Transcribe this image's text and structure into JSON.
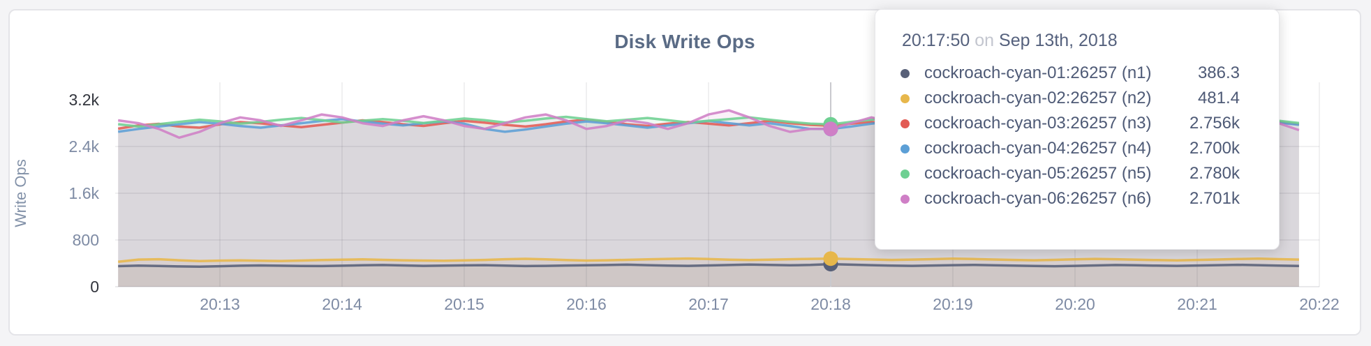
{
  "header": {
    "title": "Disk Write Ops"
  },
  "tooltip": {
    "time": "20:17:50",
    "conjunction": "on",
    "date": "Sep 13th, 2018",
    "rows": [
      {
        "label": "cockroach-cyan-01:26257 (n1)",
        "value": "386.3"
      },
      {
        "label": "cockroach-cyan-02:26257 (n2)",
        "value": "481.4"
      },
      {
        "label": "cockroach-cyan-03:26257 (n3)",
        "value": "2.756k"
      },
      {
        "label": "cockroach-cyan-04:26257 (n4)",
        "value": "2.700k"
      },
      {
        "label": "cockroach-cyan-05:26257 (n5)",
        "value": "2.780k"
      },
      {
        "label": "cockroach-cyan-06:26257 (n6)",
        "value": "2.701k"
      }
    ]
  },
  "chart_data": {
    "type": "area",
    "title": "Disk Write Ops",
    "xlabel": "",
    "ylabel": "Write Ops",
    "ylim": [
      0,
      3200
    ],
    "grid": true,
    "legend_position": "tooltip",
    "y_ticks": [
      {
        "label": "0",
        "value": 0,
        "emphasis": true
      },
      {
        "label": "800",
        "value": 800,
        "emphasis": false
      },
      {
        "label": "1.6k",
        "value": 1600,
        "emphasis": false
      },
      {
        "label": "2.4k",
        "value": 2400,
        "emphasis": false
      },
      {
        "label": "3.2k",
        "value": 3200,
        "emphasis": true
      }
    ],
    "x_ticks": [
      "20:13",
      "20:14",
      "20:15",
      "20:16",
      "20:17",
      "20:18",
      "20:19",
      "20:20",
      "20:21",
      "20:22"
    ],
    "x_start": "20:12:10",
    "x_interval_seconds": 10,
    "hover": {
      "time_label": "20:17:50",
      "index": 35
    },
    "colors": {
      "axis_text": "#7e8ba4",
      "axis_text_emphasis": "#32353d",
      "grid_line": "rgba(40,42,54,0.07)",
      "baseline": "rgba(40,42,54,0.10)",
      "hover_guideline": "#c9c9ce"
    },
    "series": [
      {
        "name": "cockroach-cyan-01:26257 (n1)",
        "color": "#586078",
        "values": [
          352,
          361,
          355,
          348,
          344,
          351,
          359,
          364,
          360,
          356,
          353,
          359,
          367,
          371,
          364,
          357,
          361,
          365,
          369,
          361,
          354,
          357,
          363,
          367,
          371,
          377,
          369,
          361,
          357,
          364,
          371,
          379,
          374,
          367,
          372,
          386.3,
          377,
          369,
          361,
          357,
          363,
          369,
          374,
          367,
          361,
          356,
          351,
          357,
          364,
          371,
          367,
          361,
          357,
          363,
          369,
          375,
          369,
          361,
          355
        ]
      },
      {
        "name": "cockroach-cyan-02:26257 (n2)",
        "color": "#e7b74b",
        "values": [
          428,
          465,
          470,
          452,
          438,
          446,
          450,
          444,
          440,
          448,
          456,
          463,
          468,
          460,
          453,
          448,
          444,
          450,
          458,
          470,
          478,
          468,
          456,
          448,
          453,
          460,
          468,
          476,
          482,
          474,
          463,
          456,
          462,
          470,
          476,
          481.4,
          473,
          466,
          458,
          464,
          472,
          480,
          474,
          466,
          458,
          453,
          460,
          468,
          476,
          470,
          462,
          456,
          450,
          458,
          466,
          474,
          480,
          472,
          464
        ]
      },
      {
        "name": "cockroach-cyan-03:26257 (n3)",
        "color": "#e25b54",
        "values": [
          2705,
          2762,
          2788,
          2741,
          2722,
          2779,
          2818,
          2798,
          2761,
          2732,
          2770,
          2809,
          2848,
          2819,
          2781,
          2752,
          2799,
          2838,
          2809,
          2771,
          2742,
          2781,
          2829,
          2858,
          2819,
          2781,
          2752,
          2790,
          2819,
          2790,
          2761,
          2799,
          2838,
          2799,
          2770,
          2756,
          2790,
          2819,
          2781,
          2752,
          2790,
          2829,
          2858,
          2819,
          2781,
          2819,
          2848,
          2809,
          2771,
          2799,
          2838,
          2877,
          2838,
          2799,
          2770,
          2809,
          2848,
          2819,
          2781
        ]
      },
      {
        "name": "cockroach-cyan-04:26257 (n4)",
        "color": "#5c9fd6",
        "values": [
          2652,
          2701,
          2742,
          2781,
          2818,
          2789,
          2751,
          2722,
          2761,
          2799,
          2838,
          2868,
          2829,
          2790,
          2761,
          2799,
          2829,
          2790,
          2701,
          2652,
          2691,
          2741,
          2790,
          2829,
          2799,
          2761,
          2722,
          2761,
          2799,
          2838,
          2799,
          2761,
          2799,
          2751,
          2701,
          2700,
          2741,
          2790,
          2829,
          2868,
          2829,
          2790,
          2751,
          2790,
          2829,
          2799,
          2761,
          2722,
          2761,
          2799,
          2838,
          2809,
          2771,
          2732,
          2771,
          2809,
          2848,
          2809,
          2771
        ]
      },
      {
        "name": "cockroach-cyan-05:26257 (n5)",
        "color": "#6ed092",
        "values": [
          2782,
          2741,
          2782,
          2821,
          2858,
          2830,
          2791,
          2821,
          2858,
          2888,
          2850,
          2811,
          2841,
          2869,
          2841,
          2801,
          2841,
          2879,
          2850,
          2811,
          2841,
          2879,
          2908,
          2869,
          2831,
          2858,
          2888,
          2850,
          2811,
          2841,
          2869,
          2899,
          2858,
          2821,
          2791,
          2780,
          2821,
          2858,
          2888,
          2858,
          2831,
          2858,
          2888,
          2918,
          2879,
          2841,
          2869,
          2899,
          2858,
          2831,
          2858,
          2888,
          2858,
          2831,
          2801,
          2841,
          2869,
          2841,
          2801
        ]
      },
      {
        "name": "cockroach-cyan-06:26257 (n6)",
        "color": "#cf7fc6",
        "values": [
          2848,
          2799,
          2701,
          2552,
          2651,
          2799,
          2898,
          2848,
          2751,
          2848,
          2948,
          2898,
          2799,
          2751,
          2848,
          2918,
          2848,
          2751,
          2701,
          2799,
          2898,
          2948,
          2848,
          2701,
          2751,
          2848,
          2799,
          2701,
          2799,
          2948,
          3018,
          2898,
          2751,
          2651,
          2701,
          2701,
          2799,
          2898,
          2818,
          2701,
          2751,
          2848,
          2701,
          2651,
          2751,
          2898,
          3078,
          2948,
          2799,
          2701,
          2751,
          2848,
          2751,
          2651,
          2701,
          2799,
          2898,
          2799,
          2681
        ]
      }
    ]
  }
}
